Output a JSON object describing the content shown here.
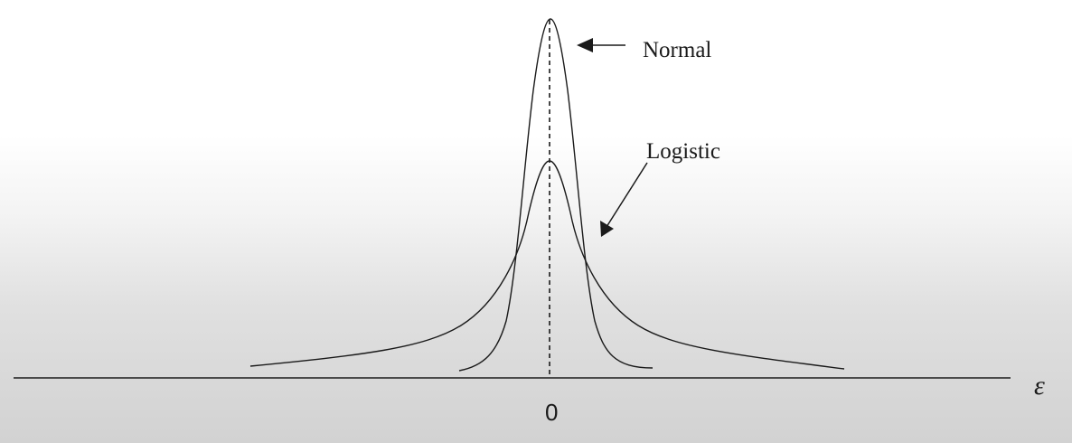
{
  "diagram": {
    "curves": [
      {
        "label": "Normal"
      },
      {
        "label": "Logistic"
      }
    ],
    "axis": {
      "symbol": "ε",
      "origin_label": "0"
    }
  }
}
